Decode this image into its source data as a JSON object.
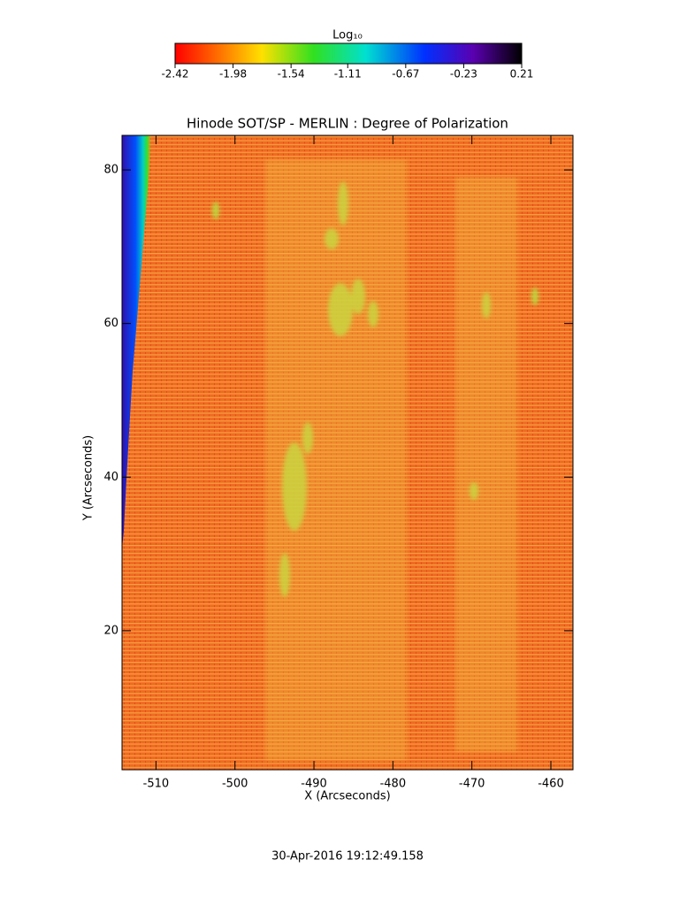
{
  "chart_data": {
    "type": "heatmap",
    "title": "Hinode SOT/SP - MERLIN : Degree of Polarization",
    "xlabel": "X (Arcseconds)",
    "ylabel": "Y (Arcseconds)",
    "xlim": [
      -514.3,
      -457.2
    ],
    "ylim": [
      1.9,
      84.5
    ],
    "xticks": [
      -510,
      -500,
      -490,
      -480,
      -470,
      -460
    ],
    "yticks": [
      20,
      40,
      60,
      80
    ],
    "colorbar": {
      "label": "Log₁₀",
      "clim": [
        -2.42,
        0.21
      ],
      "ticks": [
        -2.42,
        -1.98,
        -1.54,
        -1.11,
        -0.67,
        -0.23,
        0.21
      ]
    },
    "footer": "30-Apr-2016 19:12:49.158"
  }
}
